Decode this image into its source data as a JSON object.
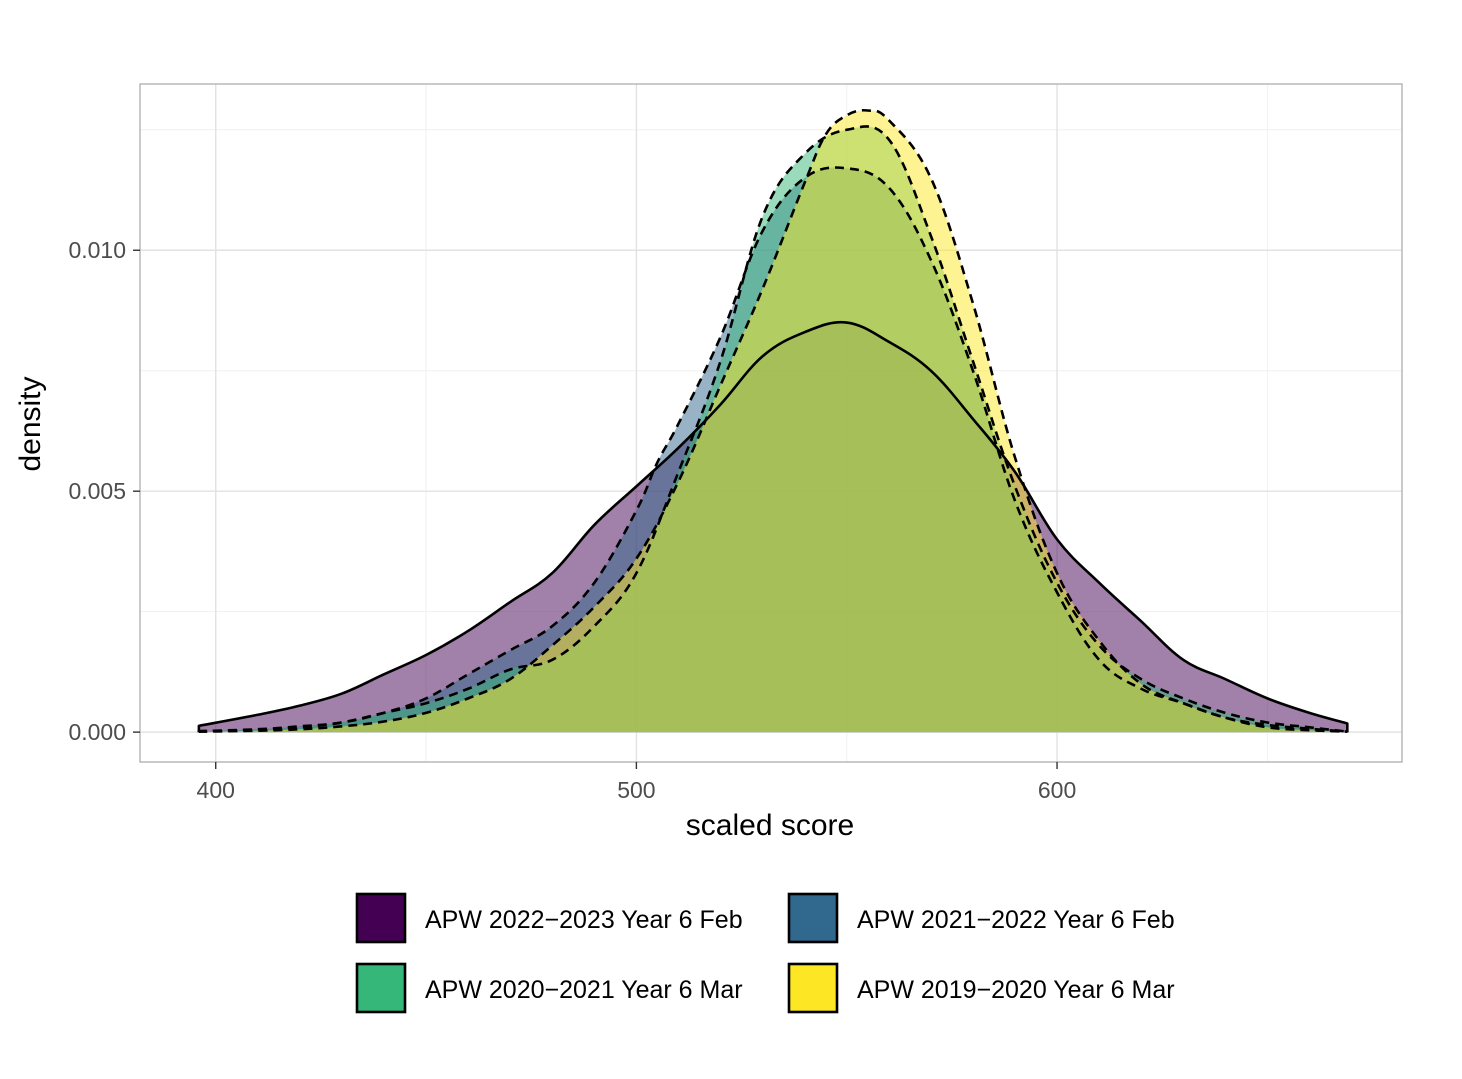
{
  "chart_data": {
    "type": "area",
    "xlabel": "scaled score",
    "ylabel": "density",
    "xlim": [
      382,
      682
    ],
    "ylim": [
      -0.00062,
      0.01345
    ],
    "x_ticks": [
      400,
      500,
      600
    ],
    "x_tick_labels": [
      "400",
      "500",
      "600"
    ],
    "y_ticks": [
      0.0,
      0.005,
      0.01
    ],
    "y_tick_labels": [
      "0.000",
      "0.005",
      "0.010"
    ],
    "grid": true,
    "legend_position": "bottom",
    "series": [
      {
        "name": "APW 2022−2023 Year 6 Feb",
        "color": "#440154",
        "linestyle": "solid",
        "x": [
          396,
          410,
          420,
          430,
          440,
          450,
          460,
          470,
          480,
          490,
          500,
          510,
          520,
          530,
          540,
          550,
          560,
          570,
          580,
          590,
          600,
          610,
          620,
          630,
          640,
          650,
          660,
          669
        ],
        "y": [
          0.00013,
          0.00036,
          0.00055,
          0.0008,
          0.0012,
          0.0016,
          0.0021,
          0.0027,
          0.0033,
          0.0043,
          0.0051,
          0.0059,
          0.0068,
          0.0078,
          0.0083,
          0.0085,
          0.0081,
          0.0075,
          0.0065,
          0.0054,
          0.004,
          0.0031,
          0.0023,
          0.0015,
          0.0011,
          0.0007,
          0.0004,
          0.00018
        ]
      },
      {
        "name": "APW 2021−2022 Year 6 Feb",
        "color": "#31688e",
        "linestyle": "dashed",
        "x": [
          396,
          410,
          420,
          430,
          440,
          450,
          460,
          470,
          480,
          490,
          500,
          505,
          510,
          520,
          530,
          540,
          550,
          560,
          570,
          580,
          590,
          600,
          610,
          620,
          630,
          640,
          650,
          660,
          669
        ],
        "y": [
          2e-05,
          6e-05,
          0.00012,
          0.0002,
          0.0004,
          0.0007,
          0.0012,
          0.0017,
          0.0022,
          0.0031,
          0.0046,
          0.0056,
          0.0064,
          0.0082,
          0.0104,
          0.0115,
          0.0117,
          0.0113,
          0.0098,
          0.0075,
          0.0048,
          0.0029,
          0.0015,
          0.0009,
          0.0006,
          0.0003,
          0.00015,
          7e-05,
          1e-05
        ]
      },
      {
        "name": "APW 2020−2021 Year 6 Mar",
        "color": "#35b779",
        "linestyle": "dashed",
        "x": [
          396,
          410,
          420,
          430,
          440,
          450,
          460,
          470,
          480,
          490,
          500,
          510,
          520,
          530,
          540,
          550,
          560,
          570,
          580,
          590,
          600,
          610,
          620,
          630,
          640,
          650,
          660,
          669
        ],
        "y": [
          2e-05,
          5e-05,
          0.0001,
          0.0002,
          0.0004,
          0.0006,
          0.0009,
          0.0013,
          0.0015,
          0.0022,
          0.0033,
          0.0054,
          0.0077,
          0.0107,
          0.012,
          0.0125,
          0.0123,
          0.0103,
          0.0077,
          0.0051,
          0.0031,
          0.0018,
          0.0011,
          0.0007,
          0.0004,
          0.0002,
          0.0001,
          1e-05
        ]
      },
      {
        "name": "APW 2019−2020 Year 6 Mar",
        "color": "#fde725",
        "linestyle": "dashed",
        "x": [
          396,
          410,
          420,
          430,
          440,
          450,
          460,
          470,
          480,
          490,
          500,
          510,
          520,
          530,
          540,
          545,
          550,
          555,
          560,
          570,
          580,
          590,
          600,
          610,
          620,
          630,
          640,
          650,
          660,
          669
        ],
        "y": [
          1e-05,
          3e-05,
          6e-05,
          0.00012,
          0.00022,
          0.0004,
          0.0007,
          0.0011,
          0.0018,
          0.0026,
          0.0036,
          0.0052,
          0.0072,
          0.0092,
          0.0114,
          0.0124,
          0.0128,
          0.0129,
          0.0127,
          0.0115,
          0.0089,
          0.0057,
          0.0033,
          0.0019,
          0.001,
          0.0006,
          0.0003,
          0.0001,
          4e-05,
          1e-05
        ]
      }
    ]
  }
}
